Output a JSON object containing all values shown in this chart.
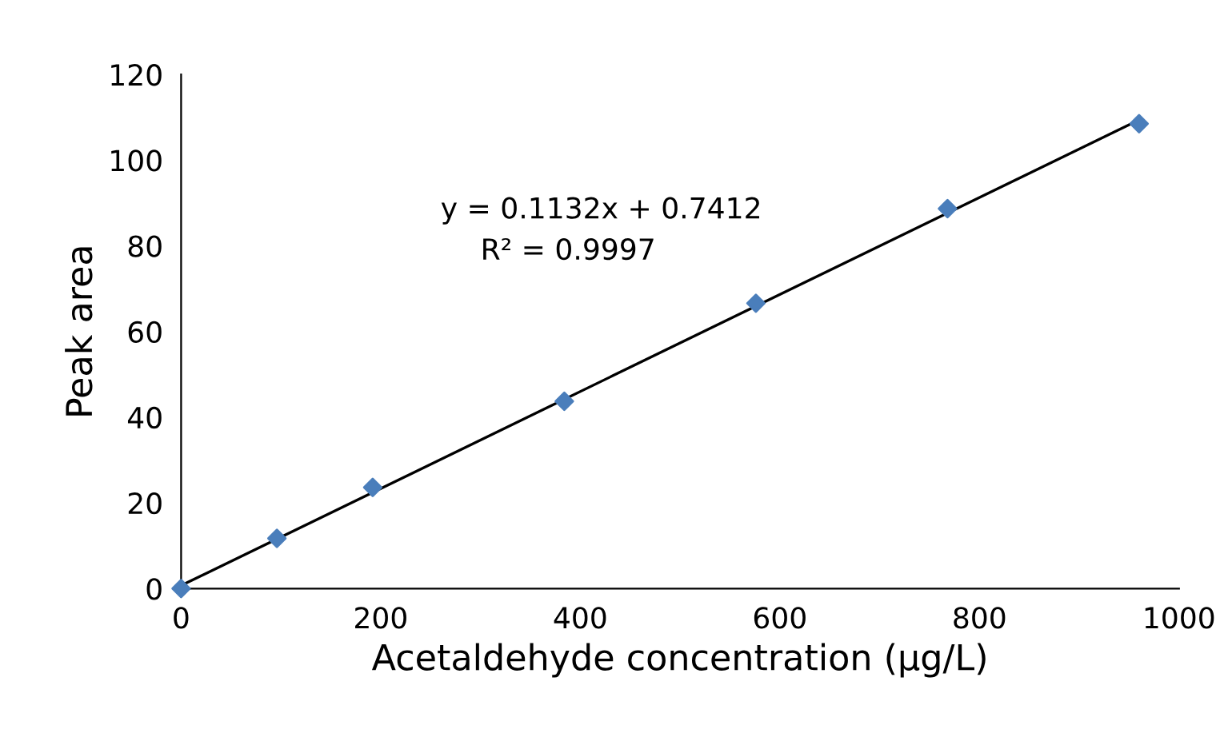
{
  "chart_data": {
    "type": "scatter",
    "xlabel": "Acetaldehyde concentration (µg/L)",
    "ylabel": "Peak area",
    "series": [
      {
        "color": "#4a7ebb",
        "marker": "diamond",
        "x": [
          0,
          96,
          192,
          384,
          576,
          768,
          960
        ],
        "values": [
          0,
          11.7,
          23.6,
          43.7,
          66.6,
          88.7,
          108.5
        ]
      },
      {
        "type": "line",
        "color": "#000000",
        "marker": "none",
        "x": [
          0,
          960
        ],
        "values": [
          0.7,
          109.4
        ]
      }
    ],
    "annotations": [
      "y = 0.1132x + 0.7412",
      "R² = 0.9997"
    ],
    "xlim": [
      0,
      1000
    ],
    "xticks": [
      0,
      200,
      400,
      600,
      800,
      1000
    ],
    "ylim": [
      0,
      120
    ],
    "yticks": [
      0,
      20,
      40,
      60,
      80,
      100,
      120
    ],
    "grid": false,
    "legend": false
  }
}
